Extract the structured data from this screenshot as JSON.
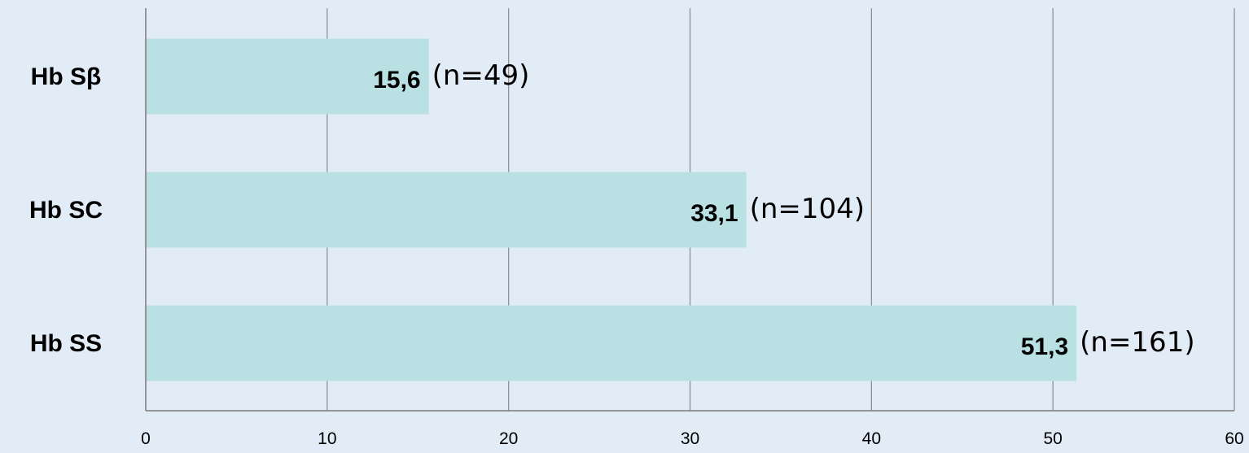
{
  "chart_data": {
    "type": "bar",
    "orientation": "horizontal",
    "title": "",
    "xlabel": "",
    "ylabel": "",
    "categories": [
      "Hb Sβ",
      "Hb SC",
      "Hb SS"
    ],
    "values": [
      15.6,
      33.1,
      51.3
    ],
    "value_labels": [
      "15,6",
      "33,1",
      "51,3"
    ],
    "annotations": [
      "(n=49)",
      "(n=104)",
      "(n=161)"
    ],
    "xlim": [
      0,
      60
    ],
    "x_ticks": [
      0,
      10,
      20,
      30,
      40,
      50,
      60
    ],
    "x_tick_labels": [
      "0",
      "10",
      "20",
      "30",
      "40",
      "50",
      "60"
    ],
    "grid": true,
    "legend": "none",
    "colors": {
      "bar": "#b9e0e2",
      "background": "#e2ecf6",
      "grid": "#8a8a8a"
    }
  }
}
